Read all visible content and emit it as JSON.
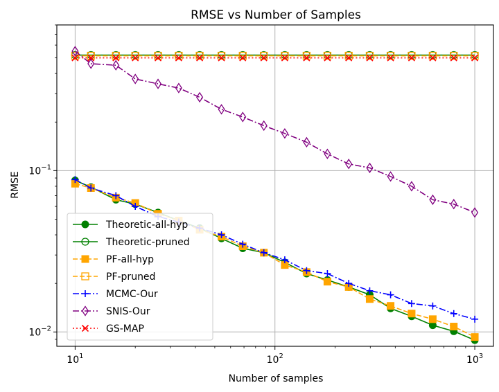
{
  "chart_data": {
    "type": "line",
    "title": "RMSE vs Number of Samples",
    "xlabel": "Number of samples",
    "ylabel": "RMSE",
    "xscale": "log",
    "yscale": "log",
    "xlim": [
      8.1,
      1240
    ],
    "ylim": [
      0.00815,
      0.8
    ],
    "grid": true,
    "legend_position": "lower-left",
    "x_ticks": [
      {
        "value": 10,
        "base": "10",
        "exp": "1"
      },
      {
        "value": 100,
        "base": "10",
        "exp": "2"
      },
      {
        "value": 1000,
        "base": "10",
        "exp": "3"
      }
    ],
    "y_ticks": [
      {
        "value": 0.01,
        "base": "10",
        "exp": "−2"
      },
      {
        "value": 0.1,
        "base": "10",
        "exp": "−1"
      }
    ],
    "x": [
      10,
      12,
      16,
      20,
      26,
      33,
      42,
      54,
      69,
      88,
      112,
      144,
      183,
      234,
      298,
      379,
      483,
      616,
      785,
      1000
    ],
    "series": [
      {
        "name": "Theoretic-all-hyp",
        "color": "#008000",
        "dash": "solid",
        "marker": "circle-filled",
        "values": [
          0.087,
          0.079,
          0.066,
          0.062,
          0.055,
          0.049,
          0.044,
          0.038,
          0.033,
          0.031,
          0.027,
          0.023,
          0.021,
          0.019,
          0.017,
          0.014,
          0.0125,
          0.011,
          0.0101,
          0.0089
        ]
      },
      {
        "name": "Theoretic-pruned",
        "color": "#008000",
        "dash": "solid",
        "marker": "circle-open",
        "values": [
          0.52,
          0.52,
          0.52,
          0.52,
          0.52,
          0.52,
          0.52,
          0.52,
          0.52,
          0.52,
          0.52,
          0.52,
          0.52,
          0.52,
          0.52,
          0.52,
          0.52,
          0.52,
          0.52,
          0.52
        ]
      },
      {
        "name": "PF-all-hyp",
        "color": "#ffa500",
        "dash": "dashed",
        "marker": "square-filled",
        "values": [
          0.083,
          0.078,
          0.068,
          0.063,
          0.054,
          0.049,
          0.043,
          0.039,
          0.034,
          0.031,
          0.026,
          0.0235,
          0.0205,
          0.019,
          0.016,
          0.0145,
          0.013,
          0.012,
          0.0108,
          0.0093
        ]
      },
      {
        "name": "PF-pruned",
        "color": "#ffa500",
        "dash": "dashed",
        "marker": "square-open",
        "values": [
          0.515,
          0.515,
          0.515,
          0.515,
          0.515,
          0.515,
          0.515,
          0.515,
          0.515,
          0.515,
          0.515,
          0.515,
          0.515,
          0.515,
          0.515,
          0.515,
          0.515,
          0.515,
          0.515,
          0.515
        ]
      },
      {
        "name": "MCMC-Our",
        "color": "#0000ff",
        "dash": "dashdot",
        "marker": "plus",
        "values": [
          0.088,
          0.078,
          0.07,
          0.06,
          0.052,
          0.048,
          0.044,
          0.04,
          0.035,
          0.031,
          0.028,
          0.024,
          0.023,
          0.02,
          0.018,
          0.017,
          0.015,
          0.0145,
          0.013,
          0.012
        ]
      },
      {
        "name": "SNIS-Our",
        "color": "#800080",
        "dash": "dashdot",
        "marker": "diamond-open",
        "values": [
          0.55,
          0.46,
          0.45,
          0.37,
          0.345,
          0.325,
          0.285,
          0.24,
          0.215,
          0.19,
          0.17,
          0.15,
          0.127,
          0.11,
          0.104,
          0.092,
          0.08,
          0.066,
          0.062,
          0.055
        ]
      },
      {
        "name": "GS-MAP",
        "color": "#ff0000",
        "dash": "dotted",
        "marker": "x",
        "values": [
          0.5,
          0.5,
          0.5,
          0.5,
          0.5,
          0.5,
          0.5,
          0.5,
          0.5,
          0.5,
          0.5,
          0.5,
          0.5,
          0.5,
          0.5,
          0.5,
          0.5,
          0.5,
          0.5,
          0.5
        ]
      }
    ]
  }
}
